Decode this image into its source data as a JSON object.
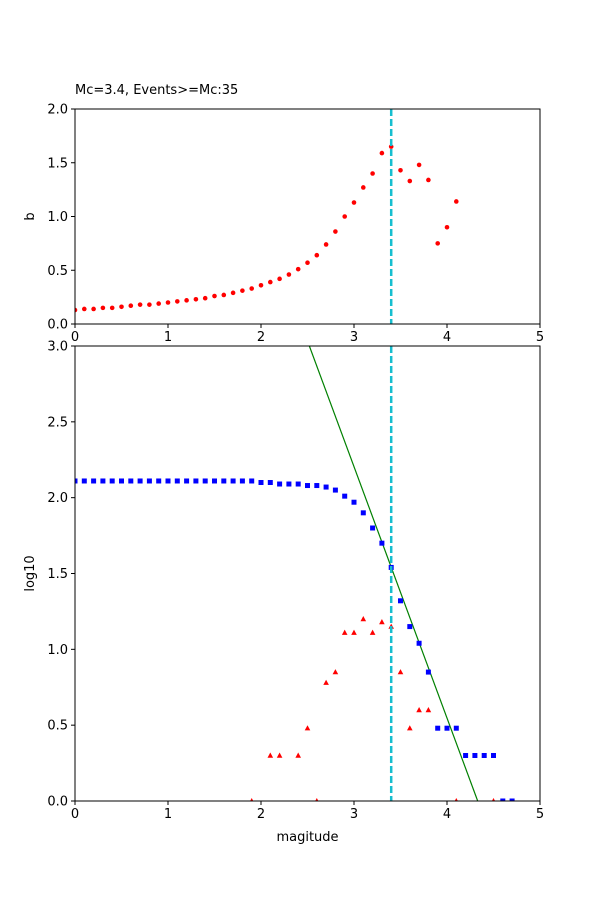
{
  "chart_data": [
    {
      "type": "scatter",
      "title": "Mc=3.4, Events>=Mc:35",
      "xlabel": "",
      "ylabel": "b",
      "xlim": [
        0,
        5
      ],
      "ylim": [
        0,
        2
      ],
      "xticks": [
        0,
        1,
        2,
        3,
        4,
        5
      ],
      "yticks": [
        0.0,
        0.5,
        1.0,
        1.5,
        2.0
      ],
      "grid": false,
      "vline": {
        "x": 3.4,
        "color": "#17becf",
        "style": "dashed"
      },
      "series": [
        {
          "marker": "circle",
          "color": "#ff0000",
          "x": [
            0.0,
            0.1,
            0.2,
            0.3,
            0.4,
            0.5,
            0.6,
            0.7,
            0.8,
            0.9,
            1.0,
            1.1,
            1.2,
            1.3,
            1.4,
            1.5,
            1.6,
            1.7,
            1.8,
            1.9,
            2.0,
            2.1,
            2.2,
            2.3,
            2.4,
            2.5,
            2.6,
            2.7,
            2.8,
            2.9,
            3.0,
            3.1,
            3.2,
            3.3,
            3.4,
            3.5,
            3.6,
            3.7,
            3.8,
            3.9,
            4.0,
            4.1
          ],
          "y": [
            0.13,
            0.14,
            0.14,
            0.15,
            0.15,
            0.16,
            0.17,
            0.18,
            0.18,
            0.19,
            0.2,
            0.21,
            0.22,
            0.23,
            0.24,
            0.26,
            0.27,
            0.29,
            0.31,
            0.33,
            0.36,
            0.39,
            0.42,
            0.46,
            0.51,
            0.57,
            0.64,
            0.74,
            0.86,
            1.0,
            1.13,
            1.27,
            1.4,
            1.59,
            1.65,
            1.43,
            1.33,
            1.48,
            1.34,
            0.75,
            0.9,
            1.14
          ]
        }
      ]
    },
    {
      "type": "scatter",
      "title": "",
      "xlabel": "magitude",
      "ylabel": "log10",
      "xlim": [
        0,
        5
      ],
      "ylim": [
        0,
        3
      ],
      "xticks": [
        0,
        1,
        2,
        3,
        4,
        5
      ],
      "yticks": [
        0.0,
        0.5,
        1.0,
        1.5,
        2.0,
        2.5,
        3.0
      ],
      "grid": false,
      "vline": {
        "x": 3.4,
        "color": "#17becf",
        "style": "dashed"
      },
      "fit_line": {
        "color": "#008000",
        "points": [
          [
            2.52,
            3.0
          ],
          [
            4.33,
            0.0
          ]
        ]
      },
      "series": [
        {
          "marker": "square",
          "color": "#0000ff",
          "x": [
            0.0,
            0.1,
            0.2,
            0.3,
            0.4,
            0.5,
            0.6,
            0.7,
            0.8,
            0.9,
            1.0,
            1.1,
            1.2,
            1.3,
            1.4,
            1.5,
            1.6,
            1.7,
            1.8,
            1.9,
            2.0,
            2.1,
            2.2,
            2.3,
            2.4,
            2.5,
            2.6,
            2.7,
            2.8,
            2.9,
            3.0,
            3.1,
            3.2,
            3.3,
            3.4,
            3.5,
            3.6,
            3.7,
            3.8,
            3.9,
            4.0,
            4.1,
            4.2,
            4.3,
            4.4,
            4.5,
            4.6,
            4.7
          ],
          "y": [
            2.11,
            2.11,
            2.11,
            2.11,
            2.11,
            2.11,
            2.11,
            2.11,
            2.11,
            2.11,
            2.11,
            2.11,
            2.11,
            2.11,
            2.11,
            2.11,
            2.11,
            2.11,
            2.11,
            2.11,
            2.1,
            2.1,
            2.09,
            2.09,
            2.09,
            2.08,
            2.08,
            2.07,
            2.05,
            2.01,
            1.97,
            1.9,
            1.8,
            1.7,
            1.54,
            1.32,
            1.15,
            1.04,
            0.85,
            0.48,
            0.48,
            0.48,
            0.3,
            0.3,
            0.3,
            0.3,
            0.0,
            0.0
          ]
        },
        {
          "marker": "triangle",
          "color": "#ff0000",
          "x": [
            1.9,
            2.1,
            2.2,
            2.4,
            2.5,
            2.6,
            2.7,
            2.8,
            2.9,
            3.0,
            3.1,
            3.2,
            3.3,
            3.4,
            3.5,
            3.6,
            3.7,
            3.8,
            4.1,
            4.5
          ],
          "y": [
            0.0,
            0.3,
            0.3,
            0.3,
            0.48,
            0.0,
            0.78,
            0.85,
            1.11,
            1.11,
            1.2,
            1.11,
            1.18,
            1.15,
            0.85,
            0.48,
            0.6,
            0.6,
            0.0,
            0.0
          ]
        }
      ]
    }
  ]
}
